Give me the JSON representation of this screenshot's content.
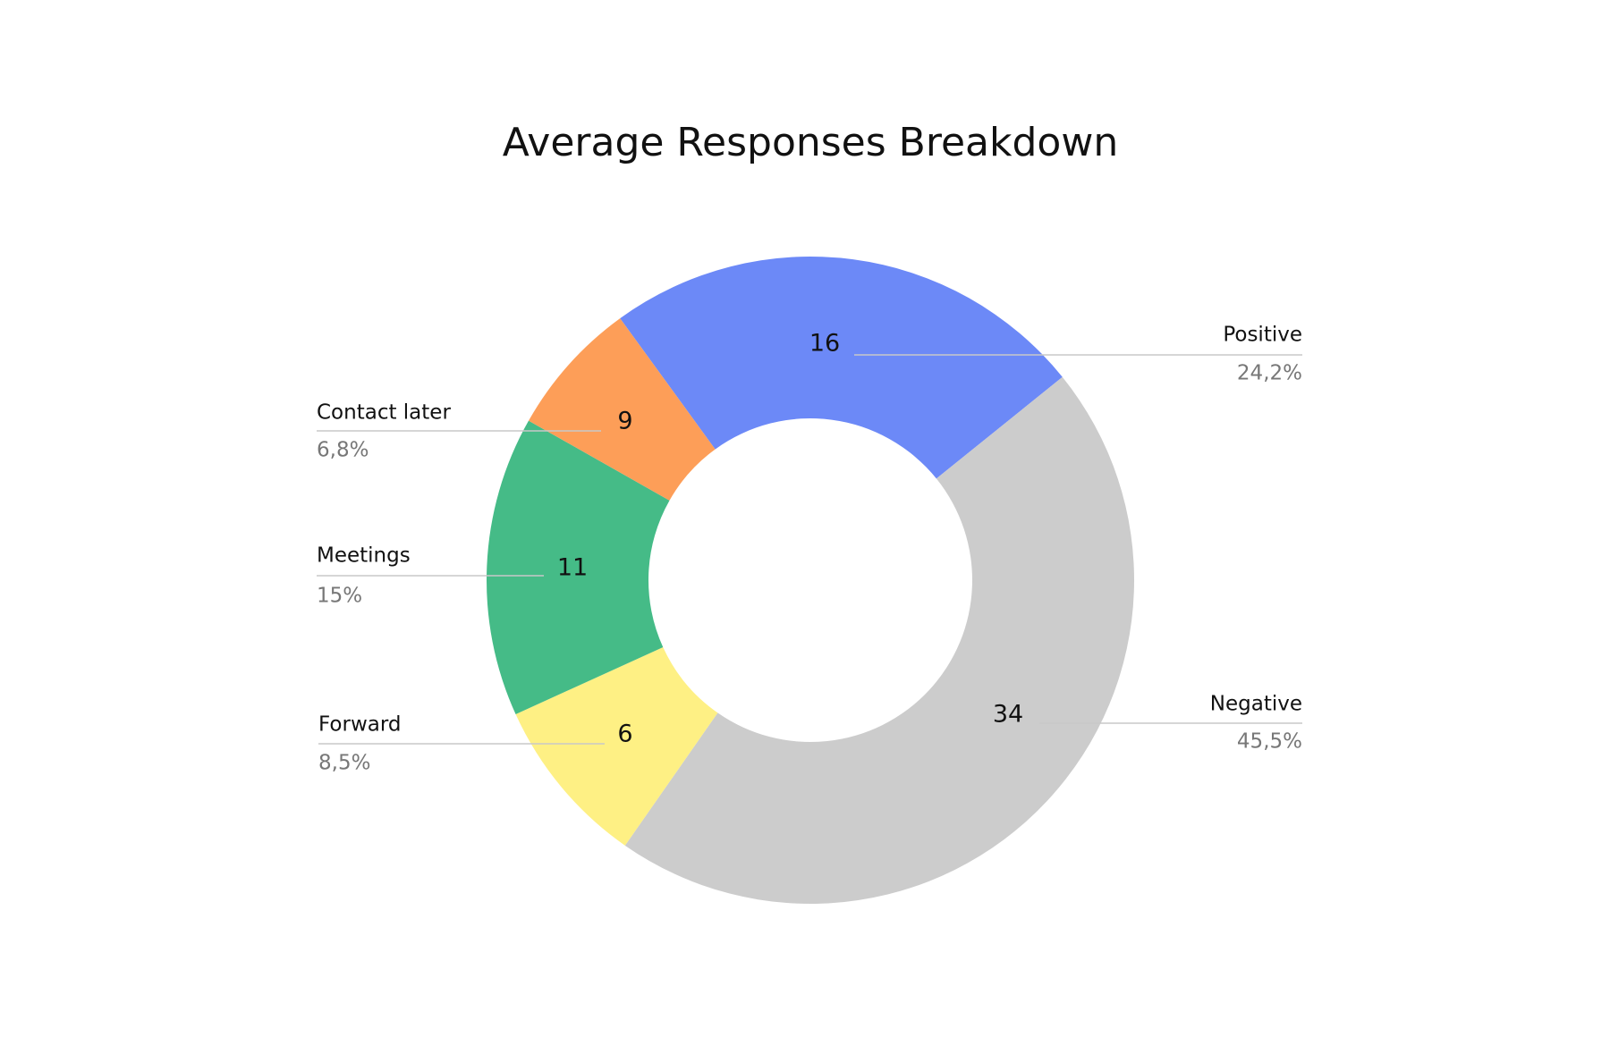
{
  "chart_data": {
    "type": "donut",
    "title": "Average Responses Breakdown",
    "categories": [
      "Positive",
      "Negative",
      "Forward",
      "Meetings",
      "Contact later"
    ],
    "values": [
      24.2,
      45.5,
      8.5,
      15,
      6.8
    ],
    "value_labels": [
      "24,2%",
      "45,5%",
      "8,5%",
      "15%",
      "6,8%"
    ],
    "counts": [
      16,
      34,
      6,
      11,
      9
    ],
    "colors": [
      "#6c89f7",
      "#cccccc",
      "#fef084",
      "#45bb87",
      "#fd9e58"
    ]
  }
}
